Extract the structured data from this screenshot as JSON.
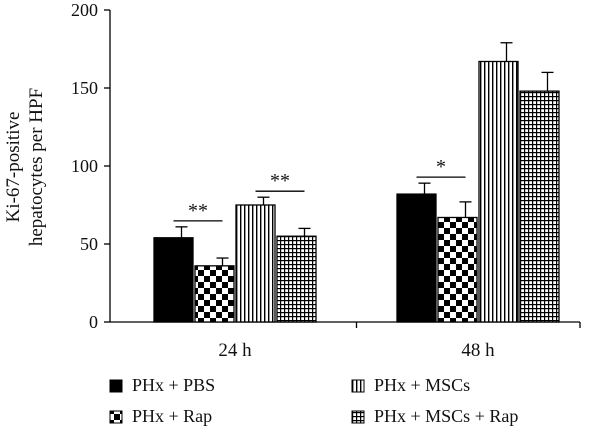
{
  "chart_data": {
    "type": "bar",
    "categories": [
      "24 h",
      "48 h"
    ],
    "ylabel": [
      "Ki-67-positive",
      "hepatocytes per HPF"
    ],
    "xlabel": "",
    "title": "",
    "ylim": [
      0,
      200
    ],
    "yticks": [
      0,
      50,
      100,
      150,
      200
    ],
    "grid": false,
    "legend_position": "bottom",
    "series": [
      {
        "name": "PHx + PBS",
        "pattern": "solid",
        "values": [
          54,
          82
        ],
        "errors": [
          7,
          7
        ]
      },
      {
        "name": "PHx + Rap",
        "pattern": "checker",
        "values": [
          36,
          67
        ],
        "errors": [
          5,
          10
        ]
      },
      {
        "name": "PHx + MSCs",
        "pattern": "vlines",
        "values": [
          75,
          167
        ],
        "errors": [
          5,
          12
        ]
      },
      {
        "name": "PHx + MSCs + Rap",
        "pattern": "grid",
        "values": [
          55,
          148
        ],
        "errors": [
          5,
          12
        ]
      }
    ],
    "annotations": [
      {
        "category": "24 h",
        "from_series": 0,
        "to_series": 1,
        "label": "**"
      },
      {
        "category": "24 h",
        "from_series": 2,
        "to_series": 3,
        "label": "**"
      },
      {
        "category": "48 h",
        "from_series": 0,
        "to_series": 1,
        "label": "*"
      }
    ],
    "colors": {
      "bar_fill": "#000000",
      "background": "#ffffff",
      "axis": "#000000"
    }
  }
}
